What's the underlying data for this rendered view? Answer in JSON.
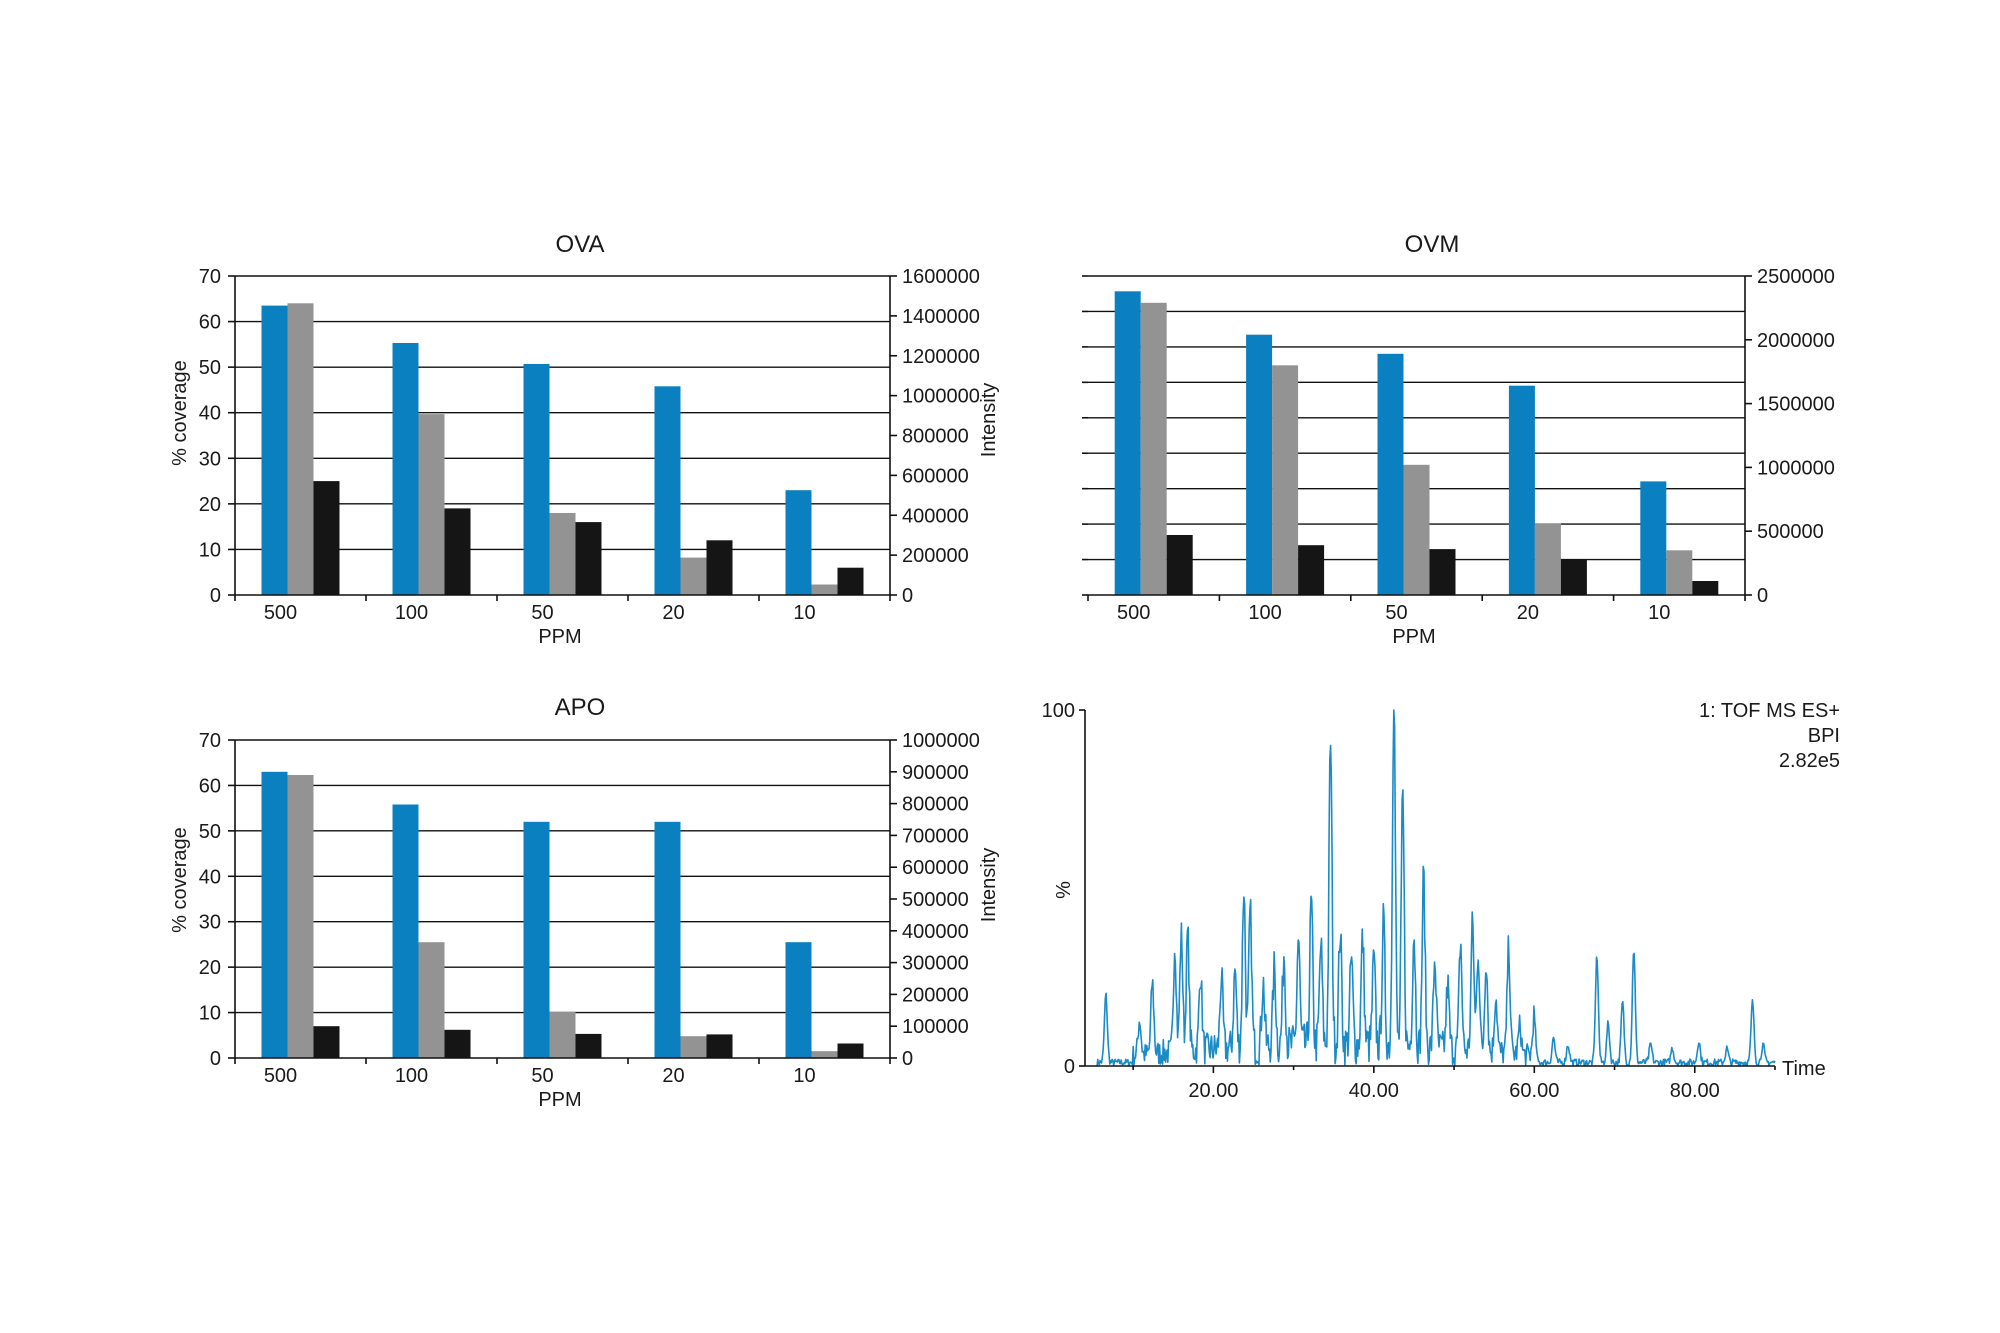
{
  "colors": {
    "series_1": "#0a80c0",
    "series_2": "#939393",
    "series_3": "#151515",
    "chromatogram": "#1a8bc6"
  },
  "chart_data": [
    {
      "id": "ova",
      "type": "bar",
      "title": "OVA",
      "xlabel": "PPM",
      "ylabel": "% coverage",
      "y2label": "Intensity",
      "categories": [
        "500",
        "100",
        "50",
        "20",
        "10"
      ],
      "ylim": [
        0,
        70
      ],
      "yticks": [
        "0",
        "10",
        "20",
        "30",
        "40",
        "50",
        "60",
        "70"
      ],
      "y2lim": [
        0,
        1600000
      ],
      "y2ticks": [
        "0",
        "200000",
        "400000",
        "600000",
        "800000",
        "1000000",
        "1200000",
        "1400000",
        "1600000"
      ],
      "grid": true,
      "series": [
        {
          "axis": "left",
          "values": [
            63.5,
            55.3,
            50.7,
            45.8,
            23.0
          ]
        },
        {
          "axis": "left",
          "values": [
            64.0,
            39.7,
            18.0,
            8.2,
            2.3
          ]
        },
        {
          "axis": "left",
          "values": [
            25.0,
            19.0,
            16.0,
            12.0,
            6.0
          ]
        }
      ]
    },
    {
      "id": "ovm",
      "type": "bar",
      "title": "OVM",
      "xlabel": "PPM",
      "categories": [
        "500",
        "100",
        "50",
        "20",
        "10"
      ],
      "ylim": [
        0,
        2500000
      ],
      "y2lim": [
        0,
        2500000
      ],
      "y2ticks": [
        "0",
        "500000",
        "1000000",
        "1500000",
        "2000000",
        "2500000"
      ],
      "grid": true,
      "series": [
        {
          "axis": "right",
          "values": [
            2380000,
            2040000,
            1890000,
            1640000,
            890000
          ]
        },
        {
          "axis": "right",
          "values": [
            2290000,
            1800000,
            1020000,
            560000,
            350000
          ]
        },
        {
          "axis": "right",
          "values": [
            470000,
            390000,
            360000,
            280000,
            110000
          ]
        }
      ]
    },
    {
      "id": "apo",
      "type": "bar",
      "title": "APO",
      "xlabel": "PPM",
      "ylabel": "% coverage",
      "y2label": "Intensity",
      "categories": [
        "500",
        "100",
        "50",
        "20",
        "10"
      ],
      "ylim": [
        0,
        70
      ],
      "yticks": [
        "0",
        "10",
        "20",
        "30",
        "40",
        "50",
        "60",
        "70"
      ],
      "y2lim": [
        0,
        1000000
      ],
      "y2ticks": [
        "0",
        "100000",
        "200000",
        "300000",
        "400000",
        "500000",
        "600000",
        "700000",
        "800000",
        "900000",
        "1000000"
      ],
      "grid": true,
      "series": [
        {
          "axis": "left",
          "values": [
            63.0,
            55.8,
            52.0,
            52.0,
            25.5
          ]
        },
        {
          "axis": "left",
          "values": [
            62.3,
            25.5,
            10.2,
            4.8,
            1.5
          ]
        },
        {
          "axis": "left",
          "values": [
            7.0,
            6.2,
            5.3,
            5.2,
            3.2
          ]
        }
      ]
    },
    {
      "id": "bpi",
      "type": "line",
      "title": "",
      "annotation": [
        "1: TOF MS ES+",
        "BPI",
        "2.82e5"
      ],
      "xlabel": "Time",
      "ylabel": "%",
      "xlim": [
        4,
        90
      ],
      "xticks": [
        "20.00",
        "40.00",
        "60.00",
        "80.00"
      ],
      "ylim": [
        0,
        100
      ],
      "yticks": [
        "0",
        "100"
      ],
      "grid": false,
      "peaks": [
        {
          "x": 6.6,
          "y": 19
        },
        {
          "x": 10.8,
          "y": 10
        },
        {
          "x": 12.4,
          "y": 20
        },
        {
          "x": 15.2,
          "y": 30
        },
        {
          "x": 16.0,
          "y": 33
        },
        {
          "x": 16.8,
          "y": 33
        },
        {
          "x": 18.4,
          "y": 22
        },
        {
          "x": 21.0,
          "y": 20
        },
        {
          "x": 22.7,
          "y": 22
        },
        {
          "x": 23.8,
          "y": 45
        },
        {
          "x": 24.6,
          "y": 38
        },
        {
          "x": 26.2,
          "y": 18
        },
        {
          "x": 27.6,
          "y": 22
        },
        {
          "x": 28.8,
          "y": 26
        },
        {
          "x": 30.6,
          "y": 30
        },
        {
          "x": 32.2,
          "y": 40
        },
        {
          "x": 33.4,
          "y": 28
        },
        {
          "x": 34.6,
          "y": 86
        },
        {
          "x": 35.8,
          "y": 32
        },
        {
          "x": 37.2,
          "y": 24
        },
        {
          "x": 38.6,
          "y": 30
        },
        {
          "x": 40.0,
          "y": 24
        },
        {
          "x": 41.2,
          "y": 35
        },
        {
          "x": 42.5,
          "y": 99
        },
        {
          "x": 43.6,
          "y": 70
        },
        {
          "x": 45.0,
          "y": 32
        },
        {
          "x": 46.2,
          "y": 48
        },
        {
          "x": 47.6,
          "y": 25
        },
        {
          "x": 49.2,
          "y": 18
        },
        {
          "x": 50.8,
          "y": 30
        },
        {
          "x": 52.3,
          "y": 36
        },
        {
          "x": 53.0,
          "y": 28
        },
        {
          "x": 54.0,
          "y": 26
        },
        {
          "x": 55.2,
          "y": 16
        },
        {
          "x": 56.8,
          "y": 30
        },
        {
          "x": 58.2,
          "y": 8
        },
        {
          "x": 60.0,
          "y": 12
        },
        {
          "x": 62.4,
          "y": 7
        },
        {
          "x": 64.2,
          "y": 5
        },
        {
          "x": 67.8,
          "y": 30
        },
        {
          "x": 69.2,
          "y": 11
        },
        {
          "x": 71.0,
          "y": 17
        },
        {
          "x": 72.4,
          "y": 32
        },
        {
          "x": 74.5,
          "y": 5
        },
        {
          "x": 77.2,
          "y": 4
        },
        {
          "x": 80.5,
          "y": 6
        },
        {
          "x": 84.0,
          "y": 4
        },
        {
          "x": 87.2,
          "y": 17
        },
        {
          "x": 88.5,
          "y": 5
        }
      ]
    }
  ]
}
